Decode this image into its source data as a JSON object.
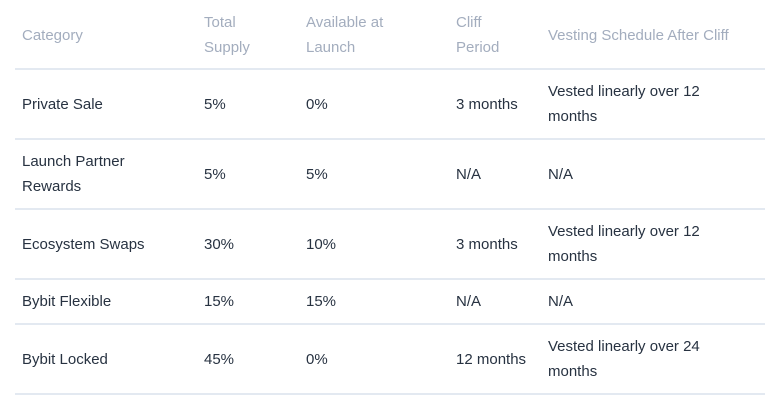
{
  "chart_data": {
    "type": "table",
    "title": "",
    "columns": [
      "Category",
      "Total Supply",
      "Available at Launch",
      "Cliff Period",
      "Vesting Schedule After Cliff"
    ],
    "rows": [
      [
        "Private Sale",
        "5%",
        "0%",
        "3 months",
        "Vested linearly over 12 months"
      ],
      [
        "Launch Partner Rewards",
        "5%",
        "5%",
        "N/A",
        "N/A"
      ],
      [
        "Ecosystem Swaps",
        "30%",
        "10%",
        "3 months",
        "Vested linearly over 12 months"
      ],
      [
        "Bybit Flexible",
        "15%",
        "15%",
        "N/A",
        "N/A"
      ],
      [
        "Bybit Locked",
        "45%",
        "0%",
        "12 months",
        "Vested linearly over 24 months"
      ]
    ]
  },
  "table": {
    "headers": {
      "category": "Category",
      "total_supply": "Total\nSupply",
      "available_at_launch": "Available at\nLaunch",
      "cliff_period": "Cliff\nPeriod",
      "vesting_schedule": "Vesting Schedule After Cliff"
    },
    "rows": [
      {
        "category": "Private Sale",
        "total_supply": "5%",
        "available_at_launch": "0%",
        "cliff_period": "3 months",
        "vesting_schedule": "Vested linearly over 12\nmonths"
      },
      {
        "category": "Launch Partner\nRewards",
        "total_supply": "5%",
        "available_at_launch": "5%",
        "cliff_period": "N/A",
        "vesting_schedule": "N/A"
      },
      {
        "category": "Ecosystem Swaps",
        "total_supply": "30%",
        "available_at_launch": "10%",
        "cliff_period": "3 months",
        "vesting_schedule": "Vested linearly over 12\nmonths"
      },
      {
        "category": "Bybit Flexible",
        "total_supply": "15%",
        "available_at_launch": "15%",
        "cliff_period": "N/A",
        "vesting_schedule": "N/A"
      },
      {
        "category": "Bybit Locked",
        "total_supply": "45%",
        "available_at_launch": "0%",
        "cliff_period": "12 months",
        "vesting_schedule": "Vested linearly over 24\nmonths"
      }
    ]
  },
  "colors": {
    "background": "#ffffff",
    "header_text": "#a3adbe",
    "body_text": "#273241",
    "divider": "#e3e9f1"
  }
}
